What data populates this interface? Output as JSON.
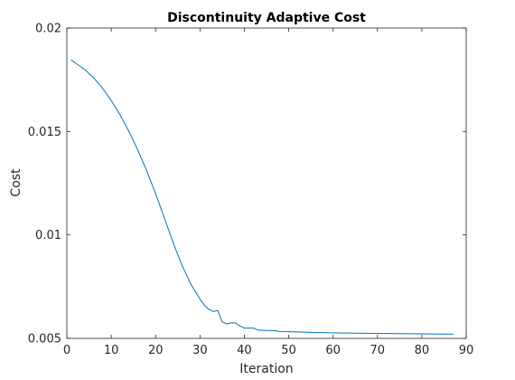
{
  "chart_data": {
    "type": "line",
    "title": "Discontinuity Adaptive Cost",
    "xlabel": "Iteration",
    "ylabel": "Cost",
    "xlim": [
      0,
      90
    ],
    "ylim": [
      0.005,
      0.02
    ],
    "xticks": [
      0,
      10,
      20,
      30,
      40,
      50,
      60,
      70,
      80,
      90
    ],
    "yticks": [
      0.005,
      0.01,
      0.015,
      0.02
    ],
    "ytick_labels": [
      "0.005",
      "0.01",
      "0.015",
      "0.02"
    ],
    "grid": false,
    "series": [
      {
        "color": "#0072bd",
        "x": [
          1,
          2,
          4,
          6,
          8,
          10,
          12,
          14,
          16,
          18,
          20,
          22,
          24,
          26,
          28,
          30,
          31,
          32,
          33,
          34,
          35,
          36,
          37,
          38,
          39,
          40,
          41,
          42,
          43,
          45,
          47,
          48,
          50,
          55,
          60,
          65,
          70,
          75,
          80,
          85,
          87
        ],
        "y": [
          0.01845,
          0.0183,
          0.018,
          0.0176,
          0.0171,
          0.0165,
          0.0158,
          0.015,
          0.0141,
          0.0131,
          0.012,
          0.0108,
          0.0096,
          0.0085,
          0.0076,
          0.0069,
          0.0066,
          0.0064,
          0.0063,
          0.00635,
          0.0058,
          0.0057,
          0.00575,
          0.00575,
          0.0056,
          0.0055,
          0.0055,
          0.0055,
          0.0054,
          0.00538,
          0.00537,
          0.00533,
          0.00532,
          0.00529,
          0.00527,
          0.00525,
          0.00524,
          0.00523,
          0.00522,
          0.00521,
          0.0052
        ]
      }
    ]
  }
}
